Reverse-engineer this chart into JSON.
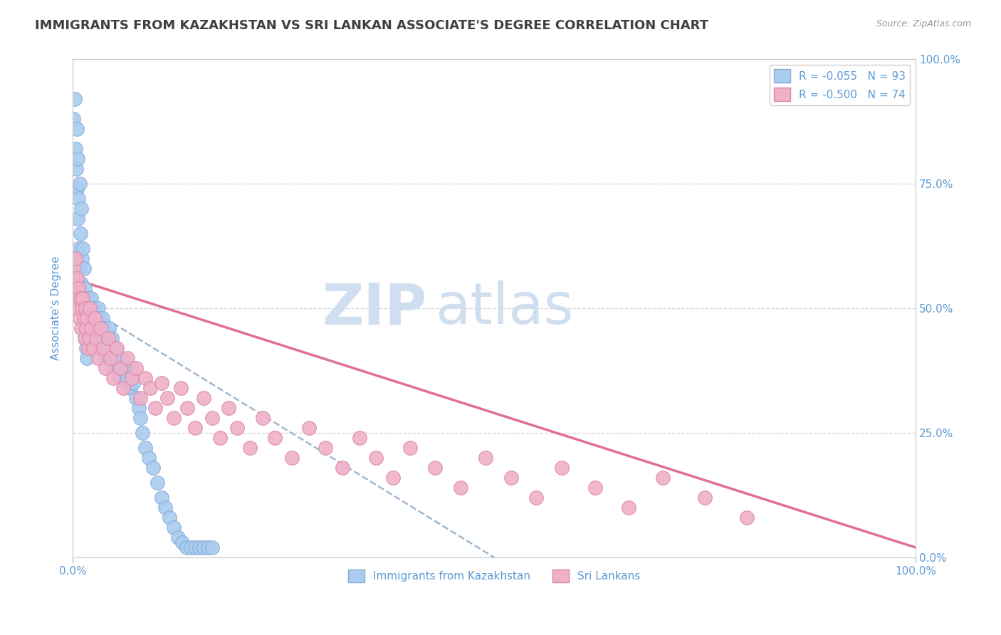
{
  "title": "IMMIGRANTS FROM KAZAKHSTAN VS SRI LANKAN ASSOCIATE'S DEGREE CORRELATION CHART",
  "source_text": "Source: ZipAtlas.com",
  "ylabel": "Associate's Degree",
  "background_color": "#ffffff",
  "plot_bg_color": "#ffffff",
  "grid_color": "#c8c8c8",
  "title_color": "#404040",
  "source_color": "#999999",
  "axis_label_color": "#5b9bd5",
  "tick_label_color": "#5b9bd5",
  "legend_text_color": "#5b9bd5",
  "watermark_line1": "ZIP",
  "watermark_line2": "atlas",
  "watermark_color": "#d0dff0",
  "series1": {
    "label": "Immigrants from Kazakhstan",
    "R": -0.055,
    "N": 93,
    "color": "#aaccf0",
    "edge_color": "#88aad8",
    "trend_color": "#a0b8d0",
    "trend_style": "--",
    "x": [
      0.001,
      0.002,
      0.003,
      0.004,
      0.005,
      0.005,
      0.006,
      0.006,
      0.007,
      0.007,
      0.008,
      0.008,
      0.009,
      0.01,
      0.01,
      0.011,
      0.011,
      0.012,
      0.012,
      0.013,
      0.013,
      0.014,
      0.014,
      0.015,
      0.015,
      0.016,
      0.016,
      0.017,
      0.017,
      0.018,
      0.019,
      0.02,
      0.021,
      0.022,
      0.023,
      0.024,
      0.025,
      0.026,
      0.027,
      0.028,
      0.029,
      0.03,
      0.031,
      0.032,
      0.033,
      0.034,
      0.035,
      0.036,
      0.037,
      0.038,
      0.039,
      0.04,
      0.041,
      0.042,
      0.043,
      0.044,
      0.045,
      0.046,
      0.047,
      0.048,
      0.049,
      0.05,
      0.052,
      0.054,
      0.056,
      0.058,
      0.06,
      0.062,
      0.065,
      0.068,
      0.07,
      0.072,
      0.075,
      0.078,
      0.08,
      0.083,
      0.086,
      0.09,
      0.095,
      0.1,
      0.105,
      0.11,
      0.115,
      0.12,
      0.125,
      0.13,
      0.135,
      0.14,
      0.145,
      0.15,
      0.155,
      0.16,
      0.165
    ],
    "y": [
      0.88,
      0.92,
      0.82,
      0.78,
      0.86,
      0.74,
      0.8,
      0.68,
      0.72,
      0.62,
      0.75,
      0.58,
      0.65,
      0.7,
      0.55,
      0.6,
      0.5,
      0.62,
      0.52,
      0.58,
      0.48,
      0.54,
      0.44,
      0.52,
      0.46,
      0.5,
      0.42,
      0.48,
      0.4,
      0.45,
      0.52,
      0.5,
      0.48,
      0.52,
      0.46,
      0.5,
      0.48,
      0.44,
      0.42,
      0.46,
      0.44,
      0.5,
      0.48,
      0.46,
      0.42,
      0.44,
      0.48,
      0.46,
      0.42,
      0.44,
      0.4,
      0.45,
      0.42,
      0.44,
      0.46,
      0.42,
      0.4,
      0.44,
      0.42,
      0.4,
      0.38,
      0.42,
      0.4,
      0.38,
      0.36,
      0.4,
      0.38,
      0.35,
      0.36,
      0.34,
      0.38,
      0.35,
      0.32,
      0.3,
      0.28,
      0.25,
      0.22,
      0.2,
      0.18,
      0.15,
      0.12,
      0.1,
      0.08,
      0.06,
      0.04,
      0.03,
      0.02,
      0.02,
      0.02,
      0.02,
      0.02,
      0.02,
      0.02
    ]
  },
  "series2": {
    "label": "Sri Lankans",
    "R": -0.5,
    "N": 74,
    "color": "#f0b0c8",
    "edge_color": "#d888a8",
    "trend_color": "#e07090",
    "trend_style": "-",
    "x": [
      0.001,
      0.002,
      0.003,
      0.004,
      0.005,
      0.006,
      0.007,
      0.008,
      0.009,
      0.01,
      0.011,
      0.012,
      0.013,
      0.014,
      0.015,
      0.016,
      0.017,
      0.018,
      0.019,
      0.02,
      0.022,
      0.024,
      0.026,
      0.028,
      0.03,
      0.033,
      0.036,
      0.039,
      0.042,
      0.045,
      0.048,
      0.052,
      0.056,
      0.06,
      0.065,
      0.07,
      0.075,
      0.08,
      0.086,
      0.092,
      0.098,
      0.105,
      0.112,
      0.12,
      0.128,
      0.136,
      0.145,
      0.155,
      0.165,
      0.175,
      0.185,
      0.195,
      0.21,
      0.225,
      0.24,
      0.26,
      0.28,
      0.3,
      0.32,
      0.34,
      0.36,
      0.38,
      0.4,
      0.43,
      0.46,
      0.49,
      0.52,
      0.55,
      0.58,
      0.62,
      0.66,
      0.7,
      0.75,
      0.8
    ],
    "y": [
      0.58,
      0.54,
      0.6,
      0.52,
      0.56,
      0.5,
      0.54,
      0.48,
      0.52,
      0.46,
      0.5,
      0.52,
      0.48,
      0.44,
      0.5,
      0.46,
      0.48,
      0.42,
      0.44,
      0.5,
      0.46,
      0.42,
      0.48,
      0.44,
      0.4,
      0.46,
      0.42,
      0.38,
      0.44,
      0.4,
      0.36,
      0.42,
      0.38,
      0.34,
      0.4,
      0.36,
      0.38,
      0.32,
      0.36,
      0.34,
      0.3,
      0.35,
      0.32,
      0.28,
      0.34,
      0.3,
      0.26,
      0.32,
      0.28,
      0.24,
      0.3,
      0.26,
      0.22,
      0.28,
      0.24,
      0.2,
      0.26,
      0.22,
      0.18,
      0.24,
      0.2,
      0.16,
      0.22,
      0.18,
      0.14,
      0.2,
      0.16,
      0.12,
      0.18,
      0.14,
      0.1,
      0.16,
      0.12,
      0.08
    ]
  },
  "xlim": [
    0.0,
    1.0
  ],
  "ylim": [
    0.0,
    1.0
  ],
  "yticks": [
    0.0,
    0.25,
    0.5,
    0.75,
    1.0
  ],
  "yticklabels_right": [
    "0.0%",
    "25.0%",
    "50.0%",
    "75.0%",
    "100.0%"
  ],
  "xtick_left": 0.0,
  "xtick_right": 1.0,
  "xtick_left_label": "0.0%",
  "xtick_right_label": "100.0%",
  "trend1_x0": 0.0,
  "trend1_y0": 0.52,
  "trend1_x1": 0.5,
  "trend1_y1": 0.0,
  "trend2_x0": 0.0,
  "trend2_y0": 0.56,
  "trend2_x1": 1.0,
  "trend2_y1": 0.02
}
